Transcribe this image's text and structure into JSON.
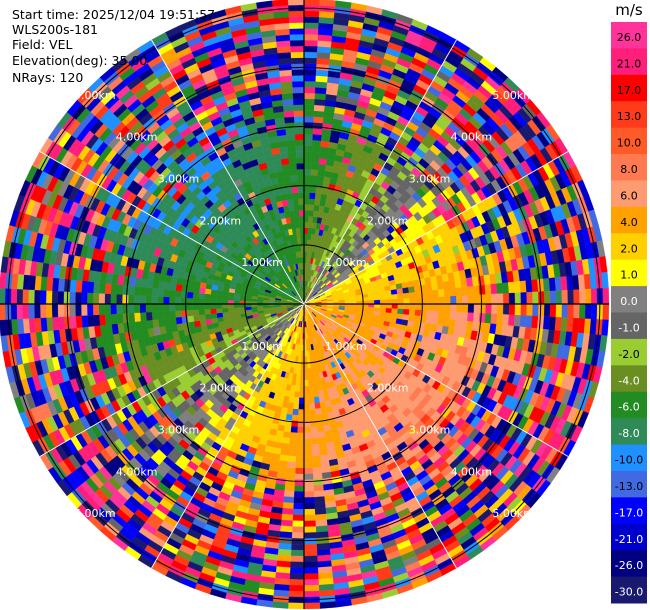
{
  "header": {
    "start_time": "Start time: 2025/12/04 19:51:57",
    "instrument": "WLS200s-181",
    "field": "Field: VEL",
    "elevation": "Elevation(deg): 35.00",
    "nrays": "NRays: 120"
  },
  "chart_data": {
    "type": "heatmap",
    "projection": "polar-ppi",
    "nrays": 120,
    "max_range_km": 5.0,
    "range_rings_km": [
      1.0,
      2.0,
      3.0,
      4.0,
      5.0
    ],
    "range_labels": [
      "1.00km",
      "2.00km",
      "3.00km",
      "4.00km",
      "5.00km"
    ],
    "colorbar": {
      "unit": "m/s",
      "ticks": [
        "26.0",
        "21.0",
        "17.0",
        "13.0",
        "10.0",
        "8.0",
        "6.0",
        "4.0",
        "2.0",
        "1.0",
        "0.0",
        "-1.0",
        "-2.0",
        "-4.0",
        "-6.0",
        "-8.0",
        "-10.0",
        "-13.0",
        "-17.0",
        "-21.0",
        "-26.0",
        "-30.0"
      ],
      "colors": [
        "#ff3399",
        "#ff1f7a",
        "#ff0000",
        "#ff3b1a",
        "#ff5a28",
        "#ff7a50",
        "#ff9b70",
        "#ffa200",
        "#ffd000",
        "#ffff00",
        "#808080",
        "#656565",
        "#9acd32",
        "#6b8e23",
        "#228b22",
        "#2e8b57",
        "#1e90ff",
        "#4169e1",
        "#0000ff",
        "#0000cd",
        "#000080",
        "#191970"
      ]
    },
    "velocity_pattern": {
      "description_values_m_s": {
        "azimuth_of_max_toward_radar_deg": 315,
        "azimuth_of_max_away_from_radar_deg": 135,
        "near_range_amplitude_m_s": 5.0,
        "far_range_amplitude_m_s": 8.0,
        "noise_onset_km": 2.7
      }
    }
  }
}
